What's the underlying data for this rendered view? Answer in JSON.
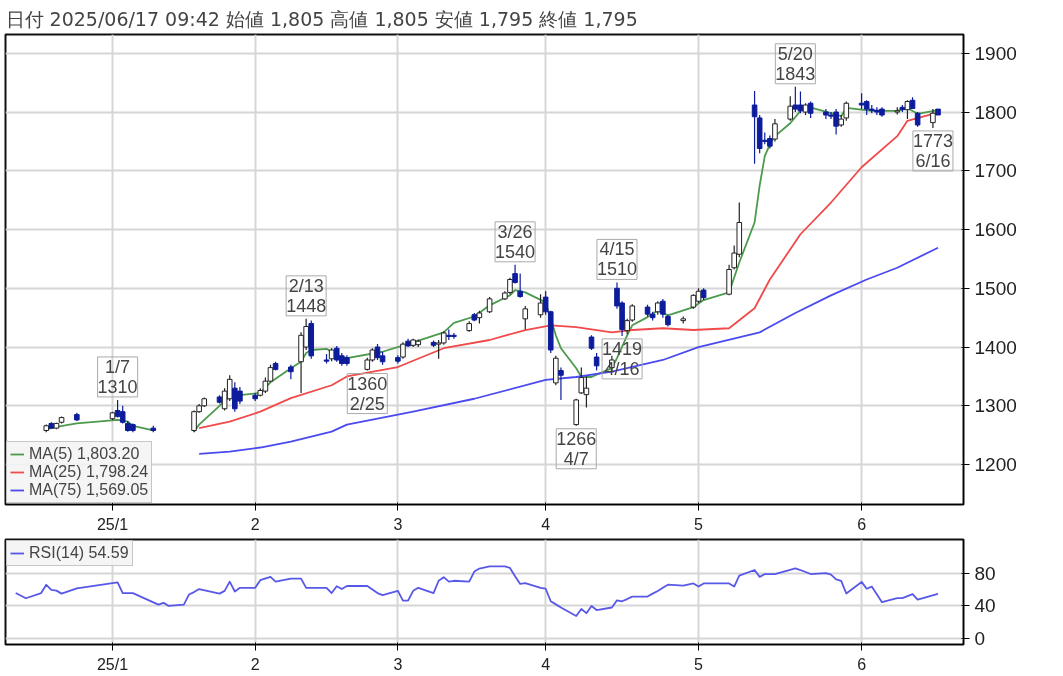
{
  "chart_data": [
    {
      "type": "candlestick",
      "title": "日付 2025/06/17 09:42 始値 1,805 高値 1,805 安値 1,795 終値 1,795",
      "x": [
        "2024-12-24",
        "2024-12-25",
        "2024-12-26",
        "2024-12-27",
        "2024-12-30",
        "2025-01-06",
        "2025-01-07",
        "2025-01-08",
        "2025-01-09",
        "2025-01-10",
        "2025-01-14",
        "2025-01-22",
        "2025-01-23",
        "2025-01-24",
        "2025-01-27",
        "2025-01-28",
        "2025-01-29",
        "2025-01-30",
        "2025-01-31",
        "2025-02-03",
        "2025-02-04",
        "2025-02-05",
        "2025-02-06",
        "2025-02-07",
        "2025-02-10",
        "2025-02-12",
        "2025-02-13",
        "2025-02-14",
        "2025-02-17",
        "2025-02-18",
        "2025-02-19",
        "2025-02-20",
        "2025-02-21",
        "2025-02-25",
        "2025-02-26",
        "2025-02-27",
        "2025-02-28",
        "2025-03-03",
        "2025-03-04",
        "2025-03-05",
        "2025-03-06",
        "2025-03-07",
        "2025-03-10",
        "2025-03-11",
        "2025-03-12",
        "2025-03-13",
        "2025-03-14",
        "2025-03-17",
        "2025-03-18",
        "2025-03-19",
        "2025-03-21",
        "2025-03-24",
        "2025-03-25",
        "2025-03-26",
        "2025-03-27",
        "2025-03-28",
        "2025-03-31",
        "2025-04-01",
        "2025-04-02",
        "2025-04-03",
        "2025-04-04",
        "2025-04-07",
        "2025-04-08",
        "2025-04-09",
        "2025-04-10",
        "2025-04-11",
        "2025-04-14",
        "2025-04-15",
        "2025-04-16",
        "2025-04-17",
        "2025-04-18",
        "2025-04-21",
        "2025-04-22",
        "2025-04-23",
        "2025-04-24",
        "2025-04-25",
        "2025-04-28",
        "2025-04-30",
        "2025-05-01",
        "2025-05-02",
        "2025-05-07",
        "2025-05-08",
        "2025-05-09",
        "2025-05-12",
        "2025-05-13",
        "2025-05-14",
        "2025-05-15",
        "2025-05-16",
        "2025-05-19",
        "2025-05-20",
        "2025-05-21",
        "2025-05-22",
        "2025-05-23",
        "2025-05-26",
        "2025-05-27",
        "2025-05-28",
        "2025-05-29",
        "2025-05-30",
        "2025-06-02",
        "2025-06-03",
        "2025-06-04",
        "2025-06-05",
        "2025-06-06",
        "2025-06-09",
        "2025-06-10",
        "2025-06-11",
        "2025-06-12",
        "2025-06-13",
        "2025-06-16",
        "2025-06-17"
      ],
      "series": [
        {
          "type": "candlestick",
          "colors": [
            "#ffffff",
            "#0c1c9c",
            "#ffffff",
            "#ffffff",
            "#0c1c9c",
            "#ffffff",
            "#0c1c9c",
            "#0c1c9c",
            "#0c1c9c",
            "#0c1c9c",
            "#0c1c9c",
            "#ffffff",
            "#ffffff",
            "#ffffff",
            "#0c1c9c",
            "#ffffff",
            "#ffffff",
            "#0c1c9c",
            "#0c1c9c",
            "#0c1c9c",
            "#ffffff",
            "#ffffff",
            "#ffffff",
            "#0c1c9c",
            "#0c1c9c",
            "#ffffff",
            "#ffffff",
            "#0c1c9c",
            "#0c1c9c",
            "#ffffff",
            "#0c1c9c",
            "#0c1c9c",
            "#0c1c9c",
            "#ffffff",
            "#ffffff",
            "#0c1c9c",
            "#0c1c9c",
            "#0c1c9c",
            "#ffffff",
            "#0c1c9c",
            "#ffffff",
            "#ffffff",
            "#0c1c9c",
            "#ffffff",
            "#ffffff",
            "#0c1c9c",
            "#0c1c9c",
            "#ffffff",
            "#0c1c9c",
            "#ffffff",
            "#ffffff",
            "#ffffff",
            "#ffffff",
            "#0c1c9c",
            "#0c1c9c",
            "#ffffff",
            "#ffffff",
            "#0c1c9c",
            "#0c1c9c",
            "#ffffff",
            "#0c1c9c",
            "#ffffff",
            "#ffffff",
            "#ffffff",
            "#0c1c9c",
            "#0c1c9c",
            "#ffffff",
            "#0c1c9c",
            "#0c1c9c",
            "#ffffff",
            "#ffffff",
            "#0c1c9c",
            "#0c1c9c",
            "#ffffff",
            "#0c1c9c",
            "#0c1c9c",
            "#ffffff",
            "#ffffff",
            "#ffffff",
            "#0c1c9c",
            "#ffffff",
            "#ffffff",
            "#ffffff",
            "#0c1c9c",
            "#0c1c9c",
            "#0c1c9c",
            "#0c1c9c",
            "#ffffff",
            "#ffffff",
            "#0c1c9c",
            "#0c1c9c",
            "#ffffff",
            "#0c1c9c",
            "#0c1c9c",
            "#0c1c9c",
            "#0c1c9c",
            "#ffffff",
            "#ffffff",
            "#0c1c9c",
            "#0c1c9c",
            "#0c1c9c",
            "#0c1c9c",
            "#0c1c9c",
            "#ffffff",
            "#0c1c9c",
            "#ffffff",
            "#0c1c9c",
            "#0c1c9c",
            "#ffffff",
            "#0c1c9c"
          ],
          "ohlc": [
            [
              1258,
              1268,
              1255,
              1266
            ],
            [
              1270,
              1272,
              1261,
              1262
            ],
            [
              1262,
              1271,
              1260,
              1270
            ],
            [
              1272,
              1282,
              1270,
              1280
            ],
            [
              1285,
              1288,
              1274,
              1276
            ],
            [
              1278,
              1290,
              1276,
              1288
            ],
            [
              1292,
              1310,
              1280,
              1282
            ],
            [
              1290,
              1300,
              1270,
              1272
            ],
            [
              1270,
              1274,
              1256,
              1258
            ],
            [
              1268,
              1270,
              1255,
              1258
            ],
            [
              1262,
              1266,
              1255,
              1258
            ],
            [
              1258,
              1292,
              1255,
              1290
            ],
            [
              1290,
              1303,
              1288,
              1300
            ],
            [
              1300,
              1314,
              1298,
              1312
            ],
            [
              1315,
              1318,
              1304,
              1306
            ],
            [
              1295,
              1330,
              1292,
              1325
            ],
            [
              1312,
              1352,
              1308,
              1345
            ],
            [
              1330,
              1340,
              1290,
              1295
            ],
            [
              1325,
              1332,
              1303,
              1308
            ],
            [
              1318,
              1322,
              1308,
              1312
            ],
            [
              1318,
              1330,
              1316,
              1326
            ],
            [
              1325,
              1348,
              1322,
              1342
            ],
            [
              1342,
              1370,
              1340,
              1365
            ],
            [
              1372,
              1375,
              1360,
              1362
            ],
            [
              1366,
              1370,
              1345,
              1358
            ],
            [
              1375,
              1425,
              1322,
              1420
            ],
            [
              1400,
              1448,
              1395,
              1435
            ],
            [
              1440,
              1445,
              1380,
              1385
            ],
            [
              1378,
              1388,
              1372,
              1376
            ],
            [
              1380,
              1398,
              1376,
              1395
            ],
            [
              1398,
              1402,
              1375,
              1378
            ],
            [
              1385,
              1390,
              1368,
              1372
            ],
            [
              1382,
              1386,
              1368,
              1372
            ],
            [
              1362,
              1382,
              1360,
              1378
            ],
            [
              1378,
              1398,
              1375,
              1395
            ],
            [
              1400,
              1405,
              1378,
              1382
            ],
            [
              1385,
              1392,
              1370,
              1375
            ],
            [
              1382,
              1386,
              1372,
              1376
            ],
            [
              1383,
              1408,
              1380,
              1405
            ],
            [
              1410,
              1414,
              1400,
              1402
            ],
            [
              1403,
              1414,
              1400,
              1412
            ],
            [
              1404,
              1413,
              1400,
              1410
            ],
            [
              1408,
              1411,
              1400,
              1403
            ],
            [
              1405,
              1412,
              1380,
              1407
            ],
            [
              1407,
              1427,
              1404,
              1424
            ],
            [
              1420,
              1430,
              1412,
              1418
            ],
            [
              1420,
              1424,
              1414,
              1418
            ],
            [
              1428,
              1444,
              1426,
              1440
            ],
            [
              1455,
              1458,
              1444,
              1446
            ],
            [
              1450,
              1462,
              1440,
              1458
            ],
            [
              1460,
              1485,
              1458,
              1482
            ],
            [
              1482,
              1495,
              1480,
              1492
            ],
            [
              1493,
              1518,
              1490,
              1515
            ],
            [
              1525,
              1540,
              1508,
              1510
            ],
            [
              1495,
              1525,
              1484,
              1486
            ],
            [
              1448,
              1470,
              1430,
              1465
            ],
            [
              1455,
              1490,
              1450,
              1475
            ],
            [
              1485,
              1495,
              1455,
              1460
            ],
            [
              1460,
              1462,
              1390,
              1395
            ],
            [
              1339,
              1385,
              1335,
              1381
            ],
            [
              1360,
              1365,
              1310,
              1352
            ],
            [
              1268,
              1312,
              1266,
              1310
            ],
            [
              1322,
              1365,
              1320,
              1348
            ],
            [
              1319,
              1350,
              1297,
              1330
            ],
            [
              1417,
              1420,
              1395,
              1398
            ],
            [
              1383,
              1390,
              1360,
              1368
            ],
            [
              1365,
              1385,
              1358,
              1378
            ],
            [
              1500,
              1510,
              1465,
              1470
            ],
            [
              1475,
              1478,
              1419,
              1430
            ],
            [
              1428,
              1448,
              1422,
              1445
            ],
            [
              1446,
              1473,
              1443,
              1470
            ],
            [
              1468,
              1472,
              1452,
              1456
            ],
            [
              1456,
              1460,
              1445,
              1450
            ],
            [
              1460,
              1478,
              1455,
              1475
            ],
            [
              1478,
              1482,
              1450,
              1456
            ],
            [
              1452,
              1455,
              1435,
              1438
            ],
            [
              1445,
              1452,
              1440,
              1448
            ],
            [
              1468,
              1490,
              1465,
              1488
            ],
            [
              1478,
              1500,
              1475,
              1495
            ],
            [
              1497,
              1500,
              1480,
              1484
            ],
            [
              1490,
              1540,
              1488,
              1532
            ],
            [
              1535,
              1573,
              1532,
              1560
            ],
            [
              1558,
              1646,
              1553,
              1612
            ],
            [
              1812,
              1836,
              1712,
              1792
            ],
            [
              1790,
              1795,
              1730,
              1738
            ],
            [
              1752,
              1765,
              1745,
              1750
            ],
            [
              1755,
              1760,
              1738,
              1742
            ],
            [
              1754,
              1788,
              1750,
              1780
            ],
            [
              1788,
              1827,
              1785,
              1810
            ],
            [
              1812,
              1843,
              1800,
              1805
            ],
            [
              1812,
              1835,
              1798,
              1802
            ],
            [
              1800,
              1815,
              1795,
              1812
            ],
            [
              1815,
              1818,
              1790,
              1798
            ],
            [
              1800,
              1805,
              1788,
              1795
            ],
            [
              1795,
              1800,
              1788,
              1793
            ],
            [
              1800,
              1805,
              1762,
              1776
            ],
            [
              1778,
              1795,
              1775,
              1788
            ],
            [
              1790,
              1818,
              1785,
              1815
            ],
            [
              1815,
              1832,
              1805,
              1812
            ],
            [
              1818,
              1820,
              1795,
              1805
            ],
            [
              1805,
              1812,
              1798,
              1803
            ],
            [
              1803,
              1808,
              1795,
              1800
            ],
            [
              1805,
              1808,
              1792,
              1795
            ],
            [
              1800,
              1808,
              1796,
              1802
            ],
            [
              1808,
              1812,
              1800,
              1804
            ],
            [
              1804,
              1820,
              1788,
              1818
            ],
            [
              1820,
              1825,
              1805,
              1806
            ],
            [
              1798,
              1800,
              1775,
              1778
            ],
            [
              1782,
              1805,
              1773,
              1798
            ],
            [
              1805,
              1805,
              1795,
              1795
            ]
          ]
        },
        {
          "type": "line",
          "name": "MA(5) 1,803.20",
          "color": "#4c9a4c",
          "x": [
            "2024-12-24",
            "2024-12-26",
            "2024-12-30",
            "2025-01-07",
            "2025-01-09",
            "2025-01-10",
            "2025-01-14",
            "2025-01-17",
            "2025-01-22",
            "2025-01-23",
            "2025-01-27",
            "2025-01-29",
            "2025-01-31",
            "2025-02-04",
            "2025-02-06",
            "2025-02-10",
            "2025-02-12",
            "2025-02-13",
            "2025-02-14",
            "2025-02-17",
            "2025-02-19",
            "2025-02-21",
            "2025-02-28",
            "2025-03-06",
            "2025-03-12",
            "2025-03-14",
            "2025-03-18",
            "2025-03-21",
            "2025-03-25",
            "2025-03-26",
            "2025-03-28",
            "2025-04-01",
            "2025-04-03",
            "2025-04-04",
            "2025-04-07",
            "2025-04-08",
            "2025-04-10",
            "2025-04-11",
            "2025-04-14",
            "2025-04-15",
            "2025-04-17",
            "2025-04-18",
            "2025-04-21",
            "2025-04-23",
            "2025-04-25",
            "2025-04-30",
            "2025-05-02",
            "2025-05-07",
            "2025-05-09",
            "2025-05-12",
            "2025-05-13",
            "2025-05-14",
            "2025-05-15",
            "2025-05-16",
            "2025-05-19",
            "2025-05-21",
            "2025-05-22",
            "2025-05-27",
            "2025-05-29",
            "2025-05-30",
            "2025-06-04",
            "2025-06-09",
            "2025-06-11",
            "2025-06-13",
            "2025-06-17"
          ],
          "values": [
            1260,
            1264,
            1270,
            1276,
            1273,
            1266,
            1258,
            null,
            1256,
            1268,
            1300,
            1315,
            1318,
            1322,
            1340,
            1364,
            1375,
            1390,
            1395,
            1397,
            1386,
            1381,
            1392,
            1408,
            1425,
            1441,
            1452,
            1471,
            1488,
            1497,
            1493,
            1476,
            1420,
            1398,
            1364,
            1349,
            1349,
            1353,
            1364,
            1381,
            1420,
            1437,
            1451,
            1462,
            1454,
            1468,
            1480,
            1493,
            1544,
            1612,
            1675,
            1725,
            1745,
            1759,
            1781,
            1802,
            1810,
            1798,
            1793,
            1807,
            1802,
            1802,
            1807,
            1797,
            1803.2
          ]
        },
        {
          "type": "line",
          "name": "MA(25) 1,798.24",
          "color": "#f04a4a",
          "x": [
            "2025-01-23",
            "2025-01-29",
            "2025-02-04",
            "2025-02-10",
            "2025-02-18",
            "2025-02-21",
            "2025-03-03",
            "2025-03-12",
            "2025-03-21",
            "2025-03-28",
            "2025-04-02",
            "2025-04-07",
            "2025-04-14",
            "2025-04-18",
            "2025-04-24",
            "2025-04-30",
            "2025-05-07",
            "2025-05-12",
            "2025-05-15",
            "2025-05-21",
            "2025-05-27",
            "2025-06-02",
            "2025-06-09",
            "2025-06-11",
            "2025-06-16",
            "2025-06-17"
          ],
          "values": [
            1262,
            1273,
            1290,
            1313,
            1335,
            1350,
            1366,
            1398,
            1412,
            1429,
            1437,
            1434,
            1425,
            1429,
            1432,
            1429,
            1432,
            1466,
            1515,
            1592,
            1646,
            1706,
            1759,
            1785,
            1797,
            1798.24
          ]
        },
        {
          "type": "line",
          "name": "MA(75) 1,569.05",
          "color": "#4a4af0",
          "x": [
            "2025-01-23",
            "2025-01-29",
            "2025-02-04",
            "2025-02-10",
            "2025-02-18",
            "2025-02-21",
            "2025-03-06",
            "2025-03-18",
            "2025-04-01",
            "2025-04-07",
            "2025-04-14",
            "2025-04-24",
            "2025-05-01",
            "2025-05-13",
            "2025-05-20",
            "2025-05-27",
            "2025-06-03",
            "2025-06-09",
            "2025-06-17"
          ],
          "values": [
            1218,
            1222,
            1229,
            1239,
            1256,
            1268,
            1290,
            1312,
            1344,
            1349,
            1358,
            1378,
            1400,
            1425,
            1458,
            1488,
            1515,
            1535,
            1569.05
          ]
        }
      ],
      "annotations": [
        {
          "text": "1/7\n1310",
          "x": "2025-01-07",
          "y": 1310
        },
        {
          "text": "2/13\n1448",
          "x": "2025-02-13",
          "y": 1448
        },
        {
          "text": "1360\n2/25",
          "x": "2025-02-25",
          "y": 1360
        },
        {
          "text": "3/26\n1540",
          "x": "2025-03-26",
          "y": 1540
        },
        {
          "text": "1266\n4/7",
          "x": "2025-04-07",
          "y": 1266
        },
        {
          "text": "4/15\n1510",
          "x": "2025-04-15",
          "y": 1510
        },
        {
          "text": "1419\n4/16",
          "x": "2025-04-16",
          "y": 1419
        },
        {
          "text": "5/20\n1843",
          "x": "2025-05-20",
          "y": 1843
        },
        {
          "text": "1773\n6/16",
          "x": "2025-06-16",
          "y": 1773
        }
      ],
      "xlim": [
        "2024-12-16",
        "2025-06-22"
      ],
      "xticks": [
        {
          "value": "2025-01-06",
          "label": "25/1"
        },
        {
          "value": "2025-02-03",
          "label": "2"
        },
        {
          "value": "2025-03-03",
          "label": "3"
        },
        {
          "value": "2025-04-01",
          "label": "4"
        },
        {
          "value": "2025-05-01",
          "label": "5"
        },
        {
          "value": "2025-06-02",
          "label": "6"
        }
      ],
      "ylim": [
        1132,
        1932
      ],
      "yticks": [
        1200,
        1300,
        1400,
        1500,
        1600,
        1700,
        1800,
        1900
      ],
      "grid": true,
      "legend": "bottom left"
    },
    {
      "type": "line",
      "series": [
        {
          "name": "RSI(14) 54.59",
          "color": "#5858e8",
          "x": [
            "2024-12-18",
            "2024-12-20",
            "2024-12-23",
            "2024-12-24",
            "2024-12-25",
            "2024-12-26",
            "2024-12-27",
            "2024-12-30",
            "2025-01-07",
            "2025-01-08",
            "2025-01-10",
            "2025-01-15",
            "2025-01-16",
            "2025-01-17",
            "2025-01-20",
            "2025-01-21",
            "2025-01-22",
            "2025-01-23",
            "2025-01-27",
            "2025-01-28",
            "2025-01-29",
            "2025-01-30",
            "2025-01-31",
            "2025-02-03",
            "2025-02-04",
            "2025-02-06",
            "2025-02-07",
            "2025-02-10",
            "2025-02-12",
            "2025-02-13",
            "2025-02-17",
            "2025-02-18",
            "2025-02-19",
            "2025-02-20",
            "2025-02-21",
            "2025-02-25",
            "2025-02-27",
            "2025-02-28",
            "2025-03-03",
            "2025-03-04",
            "2025-03-05",
            "2025-03-06",
            "2025-03-07",
            "2025-03-10",
            "2025-03-11",
            "2025-03-12",
            "2025-03-13",
            "2025-03-14",
            "2025-03-17",
            "2025-03-18",
            "2025-03-19",
            "2025-03-21",
            "2025-03-24",
            "2025-03-25",
            "2025-03-26",
            "2025-03-27",
            "2025-03-28",
            "2025-03-31",
            "2025-04-01",
            "2025-04-02",
            "2025-04-03",
            "2025-04-04",
            "2025-04-07",
            "2025-04-08",
            "2025-04-09",
            "2025-04-10",
            "2025-04-11",
            "2025-04-14",
            "2025-04-15",
            "2025-04-16",
            "2025-04-17",
            "2025-04-18",
            "2025-04-21",
            "2025-04-22",
            "2025-04-23",
            "2025-04-24",
            "2025-04-25",
            "2025-04-28",
            "2025-04-30",
            "2025-05-01",
            "2025-05-02",
            "2025-05-07",
            "2025-05-08",
            "2025-05-09",
            "2025-05-12",
            "2025-05-13",
            "2025-05-14",
            "2025-05-16",
            "2025-05-20",
            "2025-05-21",
            "2025-05-23",
            "2025-05-26",
            "2025-05-27",
            "2025-05-28",
            "2025-05-29",
            "2025-05-30",
            "2025-06-02",
            "2025-06-03",
            "2025-06-04",
            "2025-06-06",
            "2025-06-09",
            "2025-06-10",
            "2025-06-12",
            "2025-06-13",
            "2025-06-17"
          ],
          "values": [
            55.7,
            49.4,
            55.7,
            65.8,
            59.5,
            58.7,
            55,
            61.3,
            68.8,
            55.7,
            55.7,
            41.6,
            43.8,
            40.1,
            41.6,
            53.9,
            56.9,
            60.6,
            55,
            58.4,
            69.6,
            57.6,
            62.1,
            62.1,
            71.4,
            75.5,
            69.6,
            73.3,
            73.3,
            62.1,
            62.1,
            55.7,
            64,
            60.6,
            64.3,
            64.3,
            55.7,
            53.1,
            58.4,
            46.4,
            46.4,
            58.4,
            62.1,
            55.7,
            70.7,
            75.1,
            69.6,
            70.7,
            69.6,
            81.9,
            85.6,
            88.2,
            88.2,
            86.3,
            76.3,
            66.9,
            67.7,
            62.1,
            61,
            45.7,
            41.9,
            38.1,
            27.8,
            36.2,
            31.2,
            40,
            35,
            38.1,
            46.9,
            45.7,
            48.4,
            51.4,
            51.4,
            55,
            58.3,
            62.1,
            65.9,
            64.8,
            67.4,
            63.6,
            67.4,
            67.4,
            63.6,
            77,
            83.8,
            75.4,
            78.9,
            78.9,
            85.7,
            83.8,
            78.9,
            80,
            78.1,
            72.4,
            70.5,
            55.2,
            69.3,
            61,
            63.6,
            44.6,
            49.5,
            49.5,
            54.5,
            47.6,
            54.59
          ]
        }
      ],
      "xlim": [
        "2024-12-16",
        "2025-06-22"
      ],
      "xticks": [
        {
          "value": "2025-01-06",
          "label": "25/1"
        },
        {
          "value": "2025-02-03",
          "label": "2"
        },
        {
          "value": "2025-03-03",
          "label": "3"
        },
        {
          "value": "2025-04-01",
          "label": "4"
        },
        {
          "value": "2025-05-01",
          "label": "5"
        },
        {
          "value": "2025-06-02",
          "label": "6"
        }
      ],
      "ylim": [
        -7,
        121
      ],
      "yticks": [
        0,
        40,
        80
      ],
      "grid": true,
      "legend": "top left"
    }
  ]
}
